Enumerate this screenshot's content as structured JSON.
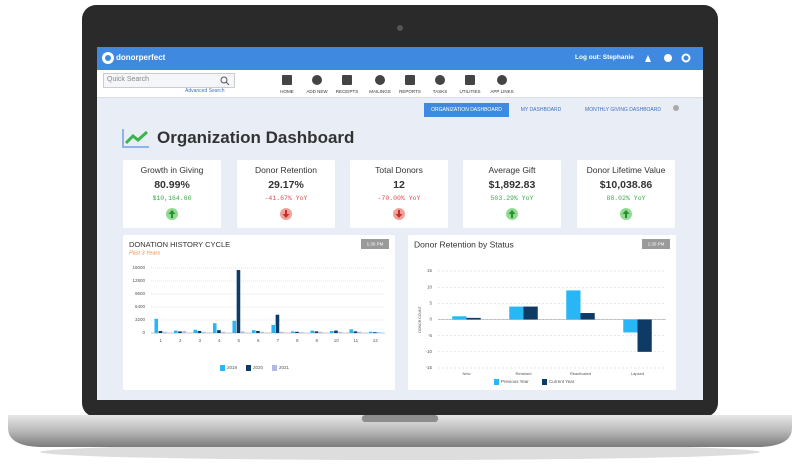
{
  "header": {
    "logo": "donorperfect",
    "logout": "Log out: Stephanie"
  },
  "search": {
    "placeholder": "Quick Search",
    "advanced": "Advanced Search"
  },
  "nav": [
    "HOME",
    "ADD NEW",
    "RECEIPTS",
    "MAILINGS",
    "REPORTS",
    "TASKS",
    "UTILITIES",
    "APP LINKS"
  ],
  "tabs": [
    "ORGANIZATION DASHBOARD",
    "MY DASHBOARD",
    "MONTHLY GIVING DASHBOARD"
  ],
  "title": "Organization Dashboard",
  "kpis": [
    {
      "label": "Growth in Giving",
      "value": "80.99%",
      "change": "$10,164.60",
      "trend": "up"
    },
    {
      "label": "Donor Retention",
      "value": "29.17%",
      "change": "-41.67% YoY",
      "trend": "down"
    },
    {
      "label": "Total Donors",
      "value": "12",
      "change": "-70.00% YoY",
      "trend": "down"
    },
    {
      "label": "Average Gift",
      "value": "$1,892.83",
      "change": "503.29% YoY",
      "trend": "up"
    },
    {
      "label": "Donor Lifetime Value",
      "value": "$10,038.86",
      "change": "88.02% YoY",
      "trend": "up"
    }
  ],
  "chart_data": [
    {
      "type": "bar",
      "title": "DONATION HISTORY CYCLE",
      "subtitle": "Past 3 Years",
      "timestamp": "1:30 PM",
      "categories": [
        "1",
        "2",
        "3",
        "4",
        "5",
        "6",
        "7",
        "8",
        "9",
        "10",
        "11",
        "12"
      ],
      "series": [
        {
          "name": "2019",
          "color": "#29b6f6",
          "values": [
            3500,
            600,
            800,
            2400,
            3000,
            700,
            2000,
            400,
            600,
            500,
            900,
            300
          ]
        },
        {
          "name": "2020",
          "color": "#0d3b66",
          "values": [
            500,
            400,
            500,
            700,
            15500,
            500,
            4500,
            300,
            400,
            600,
            400,
            200
          ]
        },
        {
          "name": "2021",
          "color": "#b3b9e6",
          "values": [
            300,
            500,
            300,
            300,
            400,
            300,
            300,
            200,
            300,
            300,
            300,
            200
          ]
        }
      ],
      "ylim": [
        0,
        16000
      ],
      "yticks": [
        0,
        3200,
        6400,
        9600,
        12800,
        16000
      ],
      "grid": true
    },
    {
      "type": "bar",
      "title": "Donor Retention by Status",
      "timestamp": "1:30 PM",
      "ylabel": "DONOR COUNT",
      "categories": [
        "New",
        "Retained",
        "Reactivated",
        "Lapsed"
      ],
      "series": [
        {
          "name": "Previous Year",
          "color": "#29b6f6",
          "values": [
            1,
            4,
            9,
            -4
          ]
        },
        {
          "name": "Current Year",
          "color": "#0d3b66",
          "values": [
            0.5,
            4,
            2,
            -10
          ]
        }
      ],
      "ylim": [
        -15,
        15
      ],
      "yticks": [
        -15,
        -10,
        -5,
        0,
        5,
        10,
        15
      ],
      "grid": true
    }
  ]
}
